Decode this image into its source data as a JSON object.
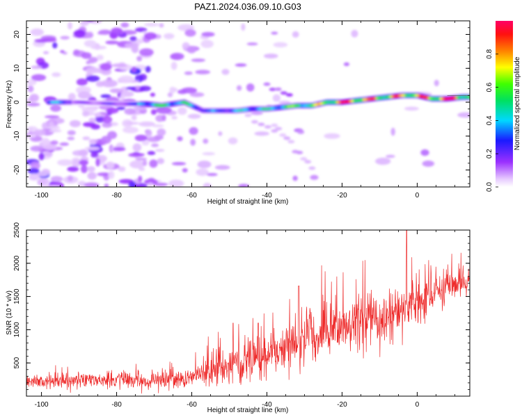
{
  "figure": {
    "title": "PAZ1.2024.036.09.10.G03"
  },
  "chart_data": [
    {
      "type": "heatmap",
      "xlabel": "Height of straight line (km)",
      "ylabel": "Frequency (Hz)",
      "xlim": [
        -104,
        14
      ],
      "ylim": [
        -25,
        24
      ],
      "x_ticks": [
        -100,
        -80,
        -60,
        -40,
        -20,
        0
      ],
      "y_ticks": [
        -20,
        -10,
        0,
        10,
        20
      ],
      "colorbar": {
        "label": "Normalized spectral amplitude",
        "range": [
          0,
          1
        ],
        "ticks": [
          0.0,
          0.2,
          0.4,
          0.6,
          0.8
        ],
        "colormap": "hsv-like (white, violet, blue, cyan, green, yellow, orange, red, magenta)"
      },
      "ridge": {
        "description": "dominant frequency track",
        "x": [
          -96,
          -90,
          -80,
          -72,
          -68,
          -62,
          -57,
          -53,
          -48,
          -44,
          -40,
          -36,
          -32,
          -28,
          -24,
          -20,
          -16,
          -12,
          -8,
          -4,
          0,
          4,
          8,
          12,
          14
        ],
        "y": [
          0,
          0,
          -0.5,
          -0.5,
          -1,
          0,
          -2.5,
          -2.5,
          -2.5,
          -2,
          -2,
          -1.5,
          -1,
          -1,
          0,
          0,
          0.5,
          1,
          1.5,
          2,
          2,
          1,
          1,
          1.5,
          1.5
        ],
        "amplitude": [
          0.35,
          0.25,
          0.3,
          0.45,
          0.5,
          0.45,
          0.3,
          0.3,
          0.35,
          0.45,
          0.4,
          0.55,
          0.55,
          0.6,
          0.7,
          0.85,
          0.8,
          0.75,
          0.7,
          0.75,
          0.8,
          0.75,
          0.95,
          0.75,
          0.7
        ]
      }
    },
    {
      "type": "line",
      "xlabel": "Height of straight line (km)",
      "ylabel": "SNR (10 * v/v)",
      "xlim": [
        -104,
        14
      ],
      "ylim": [
        0,
        2500
      ],
      "x_ticks": [
        -100,
        -80,
        -60,
        -40,
        -20,
        0
      ],
      "y_ticks": [
        500,
        1000,
        1500,
        2000,
        2500
      ],
      "series_color": "#ee2b2b",
      "trend": {
        "x": [
          -104,
          -90,
          -80,
          -70,
          -60,
          -55,
          -50,
          -45,
          -40,
          -35,
          -30,
          -25,
          -20,
          -15,
          -10,
          -5,
          -3,
          0,
          5,
          10,
          14
        ],
        "y": [
          210,
          230,
          240,
          230,
          260,
          380,
          460,
          520,
          570,
          700,
          820,
          950,
          1060,
          1130,
          1180,
          1250,
          1350,
          1300,
          1550,
          1650,
          1750
        ],
        "noise_amplitude": [
          100,
          110,
          110,
          110,
          130,
          200,
          250,
          280,
          310,
          350,
          370,
          380,
          380,
          380,
          360,
          360,
          380,
          360,
          250,
          220,
          200
        ]
      },
      "peaks": [
        {
          "x": -2.8,
          "y": 2500
        },
        {
          "x": -31.5,
          "y": 1660
        },
        {
          "x": -42.3,
          "y": 1100
        },
        {
          "x": -49,
          "y": 1100
        }
      ]
    }
  ]
}
